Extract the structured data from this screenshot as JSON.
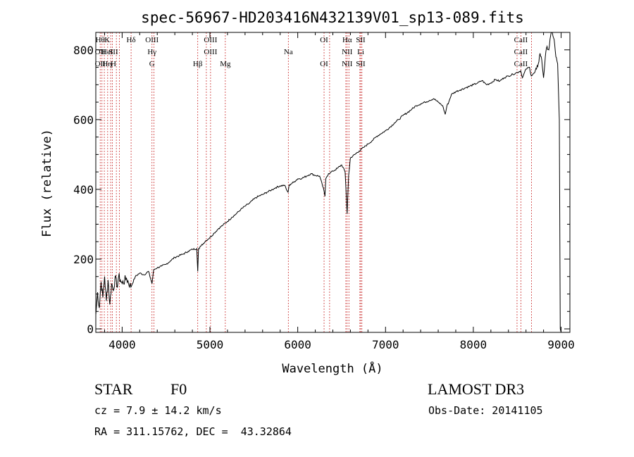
{
  "chart_data": {
    "type": "line",
    "title": "spec-56967-HD203416N432139V01_sp13-089.fits",
    "xlabel": "Wavelength (Å)",
    "ylabel": "Flux (relative)",
    "xlim": [
      3700,
      9100
    ],
    "ylim": [
      -10,
      850
    ],
    "x_ticks": [
      4000,
      5000,
      6000,
      7000,
      8000,
      9000
    ],
    "y_ticks": [
      0,
      200,
      400,
      600,
      800
    ],
    "grid": false,
    "series": [
      {
        "line_color": "#000000",
        "x": [
          3700,
          3720,
          3740,
          3760,
          3780,
          3800,
          3820,
          3840,
          3860,
          3880,
          3900,
          3920,
          3940,
          3960,
          3980,
          4000,
          4050,
          4100,
          4150,
          4200,
          4250,
          4300,
          4340,
          4360,
          4400,
          4450,
          4500,
          4550,
          4600,
          4650,
          4700,
          4750,
          4800,
          4850,
          4861,
          4870,
          4900,
          4950,
          5000,
          5050,
          5100,
          5150,
          5200,
          5250,
          5300,
          5350,
          5400,
          5450,
          5500,
          5550,
          5600,
          5650,
          5700,
          5750,
          5800,
          5850,
          5880,
          5890,
          5895,
          5900,
          5920,
          5950,
          6000,
          6050,
          6100,
          6150,
          6200,
          6250,
          6300,
          6310,
          6320,
          6350,
          6400,
          6450,
          6500,
          6540,
          6555,
          6563,
          6570,
          6580,
          6600,
          6650,
          6700,
          6750,
          6800,
          6850,
          6900,
          6950,
          7000,
          7050,
          7100,
          7150,
          7200,
          7250,
          7300,
          7350,
          7400,
          7450,
          7500,
          7550,
          7600,
          7650,
          7680,
          7700,
          7720,
          7750,
          7800,
          7850,
          7900,
          7950,
          8000,
          8050,
          8100,
          8150,
          8200,
          8250,
          8300,
          8350,
          8400,
          8450,
          8500,
          8540,
          8560,
          8600,
          8640,
          8660,
          8700,
          8720,
          8740,
          8760,
          8780,
          8800,
          8820,
          8840,
          8860,
          8880,
          8900,
          8920,
          8940,
          8960,
          8970,
          8980,
          8990,
          9000
        ],
        "y": [
          40,
          105,
          60,
          135,
          90,
          150,
          80,
          140,
          70,
          130,
          110,
          150,
          120,
          150,
          140,
          130,
          145,
          120,
          150,
          160,
          155,
          165,
          130,
          170,
          175,
          180,
          185,
          195,
          205,
          210,
          215,
          222,
          228,
          230,
          165,
          230,
          238,
          252,
          262,
          275,
          288,
          298,
          308,
          320,
          330,
          342,
          352,
          360,
          372,
          380,
          385,
          392,
          398,
          405,
          410,
          412,
          395,
          392,
          400,
          410,
          415,
          420,
          430,
          432,
          438,
          445,
          440,
          438,
          395,
          380,
          430,
          445,
          452,
          460,
          470,
          450,
          370,
          330,
          380,
          440,
          490,
          500,
          510,
          520,
          530,
          540,
          552,
          560,
          568,
          578,
          590,
          600,
          612,
          620,
          630,
          640,
          645,
          650,
          655,
          660,
          650,
          640,
          615,
          640,
          650,
          672,
          680,
          685,
          690,
          695,
          700,
          705,
          712,
          700,
          705,
          715,
          710,
          720,
          725,
          730,
          735,
          740,
          720,
          745,
          750,
          725,
          735,
          745,
          760,
          790,
          770,
          720,
          780,
          810,
          800,
          840,
          850,
          830,
          780,
          760,
          680,
          600,
          0,
          -10
        ]
      }
    ],
    "annotations": [
      {
        "labels": [
          "Hθ",
          "OII",
          "OII"
        ],
        "x": 3750
      },
      {
        "labels": [
          "K",
          "HeI",
          "Hη"
        ],
        "x": 3830
      },
      {
        "labels": [
          "",
          "SII",
          "H"
        ],
        "x": 3900
      },
      {
        "labels": [
          "Hδ",
          "",
          ""
        ],
        "x": 4102
      },
      {
        "labels": [
          "OIII",
          "Hγ",
          "G"
        ],
        "x": 4340
      },
      {
        "labels": [
          "",
          "",
          "Hβ"
        ],
        "x": 4861
      },
      {
        "labels": [
          "OIII",
          "OIII",
          ""
        ],
        "x": 5007
      },
      {
        "labels": [
          "",
          "",
          "Mg"
        ],
        "x": 5175
      },
      {
        "labels": [
          "",
          "Na",
          ""
        ],
        "x": 5893
      },
      {
        "labels": [
          "OI",
          "",
          "OI"
        ],
        "x": 6300
      },
      {
        "labels": [
          "Hα",
          "NII",
          "NII"
        ],
        "x": 6563
      },
      {
        "labels": [
          "SII",
          "Li",
          "SII"
        ],
        "x": 6717
      },
      {
        "labels": [
          "CaII",
          "CaII",
          "CaII"
        ],
        "x": 8542
      }
    ],
    "line_markers": [
      3750,
      3770,
      3797,
      3835,
      3869,
      3889,
      3934,
      3968,
      4102,
      4340,
      4363,
      4861,
      4959,
      5007,
      5175,
      5893,
      6300,
      6363,
      6548,
      6563,
      6583,
      6708,
      6717,
      6731,
      8498,
      8542,
      8662
    ],
    "marker_color": "#cc3333"
  },
  "footer": {
    "object_class": "STAR",
    "subclass": "F0",
    "survey": "LAMOST DR3",
    "redshift": "cz = 7.9 ± 14.2 km/s",
    "obs_date": "Obs-Date: 20141105",
    "coords": "RA = 311.15762, DEC =  43.32864"
  }
}
